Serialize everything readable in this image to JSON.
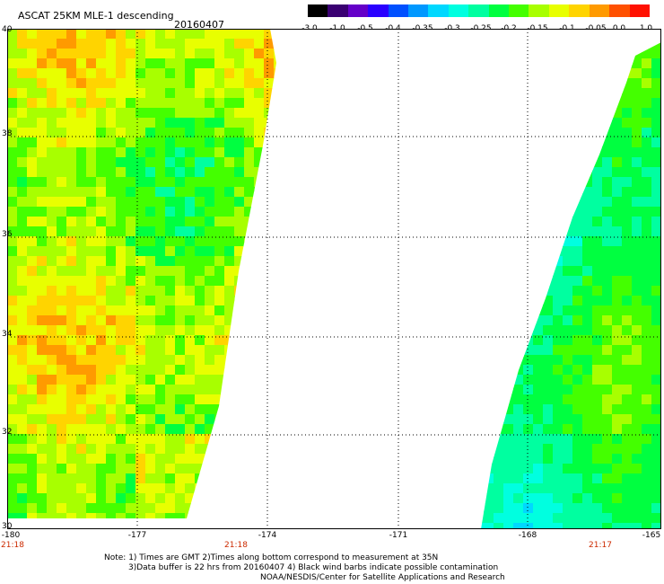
{
  "header": {
    "title": "ASCAT 25KM MLE-1 descending",
    "date": "20160407"
  },
  "colorbar": {
    "labels": [
      "-3.0",
      "-1.0",
      "-0.5",
      "-0.4",
      "-0.35",
      "-0.3",
      "-0.25",
      "-0.2",
      "-0.15",
      "-0.1",
      "-0.05",
      "0.0",
      "1.0"
    ],
    "colors": [
      "#000000",
      "#3a0072",
      "#6400c8",
      "#2a00ff",
      "#0050ff",
      "#0098ff",
      "#00d8ff",
      "#00ffe0",
      "#00ffa0",
      "#00ff40",
      "#44ff00",
      "#a8ff00",
      "#e8ff00",
      "#ffd400",
      "#ff9a00",
      "#ff5000",
      "#ff1000"
    ]
  },
  "map": {
    "lon_range": [
      -180,
      -165
    ],
    "lat_range": [
      30,
      40
    ],
    "grid_lat": [
      32,
      34,
      36,
      38
    ],
    "grid_lon": [
      -177,
      -174,
      -171,
      -168
    ],
    "y_labels": [
      "40",
      "38",
      "36",
      "34",
      "32",
      "30"
    ],
    "x_labels": [
      "-180",
      "-177",
      "-174",
      "-171",
      "-168",
      "-165"
    ],
    "time_labels": [
      "21:18",
      "21:18",
      "21:17"
    ]
  },
  "notes": {
    "line1": "Note: 1) Times are GMT 2)Times along bottom correspond to measurement at 35N",
    "line2": "3)Data buffer is 22 hrs from 20160407 4) Black wind barbs indicate possible contamination",
    "line3": "NOAA/NESDIS/Center for Satellite Applications and Research"
  }
}
